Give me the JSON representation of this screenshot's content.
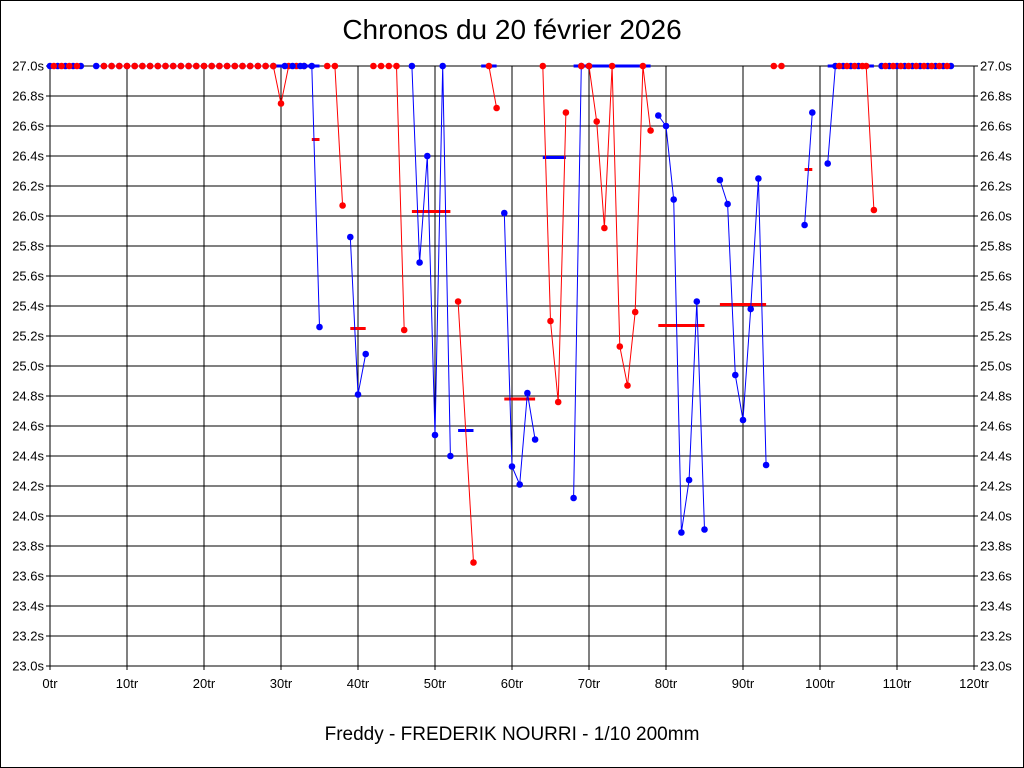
{
  "chart_data": {
    "type": "line",
    "title": "Chronos du 20 février 2026",
    "subtitle": "Freddy - FREDERIK NOURRI - 1/10 200mm",
    "xlabel": "",
    "ylabel": "",
    "xlim": [
      0,
      120
    ],
    "ylim": [
      23.0,
      27.0
    ],
    "grid": true,
    "legend": "none",
    "x_ticks": [
      "0tr",
      "10tr",
      "20tr",
      "30tr",
      "40tr",
      "50tr",
      "60tr",
      "70tr",
      "80tr",
      "90tr",
      "100tr",
      "110tr",
      "120tr"
    ],
    "y_ticks": [
      "23.0s",
      "23.2s",
      "23.4s",
      "23.6s",
      "23.8s",
      "24.0s",
      "24.2s",
      "24.4s",
      "24.6s",
      "24.8s",
      "25.0s",
      "25.2s",
      "25.4s",
      "25.6s",
      "25.8s",
      "26.0s",
      "26.2s",
      "26.4s",
      "26.6s",
      "26.8s",
      "27.0s"
    ],
    "colors": {
      "blue": "#0000ff",
      "red": "#ff0000",
      "grid": "#000000"
    },
    "series": [
      {
        "color": "#0000ff",
        "points": [
          [
            0,
            27.0
          ],
          [
            1,
            27.0
          ],
          [
            2,
            27.0
          ],
          [
            3,
            27.0
          ],
          [
            4,
            27.0
          ]
        ]
      },
      {
        "color": "#ff0000",
        "points": [
          [
            0.5,
            27.0
          ],
          [
            1.5,
            27.0
          ],
          [
            2.5,
            27.0
          ],
          [
            3.5,
            27.0
          ]
        ]
      },
      {
        "color": "#0000ff",
        "points": [
          [
            6,
            27.0
          ],
          [
            7,
            27.0
          ],
          [
            8,
            27.0
          ],
          [
            9,
            27.0
          ],
          [
            10,
            27.0
          ],
          [
            11,
            27.0
          ],
          [
            12,
            27.0
          ],
          [
            13,
            27.0
          ],
          [
            14,
            27.0
          ],
          [
            15,
            27.0
          ],
          [
            16,
            27.0
          ],
          [
            17,
            27.0
          ],
          [
            18,
            27.0
          ],
          [
            19,
            27.0
          ],
          [
            20,
            27.0
          ],
          [
            21,
            27.0
          ],
          [
            22,
            27.0
          ],
          [
            23,
            27.0
          ],
          [
            24,
            27.0
          ],
          [
            25,
            27.0
          ],
          [
            26,
            27.0
          ],
          [
            27,
            27.0
          ],
          [
            28,
            27.0
          ],
          [
            29,
            27.0
          ]
        ]
      },
      {
        "color": "#ff0000",
        "points": [
          [
            7,
            27.0
          ],
          [
            8,
            27.0
          ],
          [
            9,
            27.0
          ],
          [
            10,
            27.0
          ],
          [
            11,
            27.0
          ],
          [
            12,
            27.0
          ],
          [
            13,
            27.0
          ],
          [
            14,
            27.0
          ],
          [
            15,
            27.0
          ],
          [
            16,
            27.0
          ],
          [
            17,
            27.0
          ],
          [
            18,
            27.0
          ],
          [
            19,
            27.0
          ],
          [
            20,
            27.0
          ],
          [
            21,
            27.0
          ],
          [
            22,
            27.0
          ],
          [
            23,
            27.0
          ],
          [
            24,
            27.0
          ],
          [
            25,
            27.0
          ],
          [
            26,
            27.0
          ],
          [
            27,
            27.0
          ],
          [
            28,
            27.0
          ],
          [
            29,
            27.0
          ],
          [
            30,
            26.75
          ],
          [
            31,
            27.0
          ],
          [
            32,
            27.0
          ],
          [
            33,
            27.0
          ]
        ]
      },
      {
        "color": "#0000ff",
        "points": [
          [
            30.5,
            27.0
          ],
          [
            31.5,
            27.0
          ],
          [
            32.5,
            27.0
          ],
          [
            33,
            27.0
          ],
          [
            34,
            27.0
          ],
          [
            35,
            25.26
          ]
        ]
      },
      {
        "color": "#ff0000",
        "points": [
          [
            36,
            27.0
          ],
          [
            37,
            27.0
          ],
          [
            38,
            26.07
          ]
        ]
      },
      {
        "color": "#0000ff",
        "points": [
          [
            39,
            25.86
          ],
          [
            40,
            24.81
          ],
          [
            41,
            25.08
          ]
        ]
      },
      {
        "color": "#ff0000",
        "points": [
          [
            42,
            27.0
          ],
          [
            43,
            27.0
          ],
          [
            44,
            27.0
          ],
          [
            45,
            27.0
          ],
          [
            46,
            25.24
          ]
        ]
      },
      {
        "color": "#0000ff",
        "points": [
          [
            47,
            27.0
          ],
          [
            48,
            25.69
          ],
          [
            49,
            26.4
          ],
          [
            50,
            24.54
          ],
          [
            51,
            27.0
          ],
          [
            52,
            24.4
          ]
        ]
      },
      {
        "color": "#ff0000",
        "points": [
          [
            53,
            25.43
          ],
          [
            55,
            23.69
          ]
        ]
      },
      {
        "color": "#ff0000",
        "points": [
          [
            57,
            27.0
          ],
          [
            58,
            26.72
          ]
        ]
      },
      {
        "color": "#0000ff",
        "points": [
          [
            59,
            26.02
          ],
          [
            60,
            24.33
          ],
          [
            61,
            24.21
          ],
          [
            62,
            24.82
          ],
          [
            63,
            24.51
          ]
        ]
      },
      {
        "color": "#ff0000",
        "points": [
          [
            64,
            27.0
          ],
          [
            65,
            25.3
          ],
          [
            66,
            24.76
          ],
          [
            67,
            26.69
          ]
        ]
      },
      {
        "color": "#0000ff",
        "points": [
          [
            68,
            24.12
          ],
          [
            69,
            27.0
          ],
          [
            70,
            27.0
          ]
        ]
      },
      {
        "color": "#ff0000",
        "points": [
          [
            69,
            27.0
          ],
          [
            70,
            27.0
          ],
          [
            71,
            26.63
          ],
          [
            72,
            25.92
          ],
          [
            73,
            27.0
          ],
          [
            74,
            25.13
          ],
          [
            75,
            24.87
          ],
          [
            76,
            25.36
          ],
          [
            77,
            27.0
          ],
          [
            78,
            26.57
          ]
        ]
      },
      {
        "color": "#0000ff",
        "points": [
          [
            79,
            26.67
          ],
          [
            80,
            26.6
          ],
          [
            81,
            26.11
          ],
          [
            82,
            23.89
          ],
          [
            83,
            24.24
          ],
          [
            84,
            25.43
          ],
          [
            85,
            23.91
          ]
        ]
      },
      {
        "color": "#0000ff",
        "points": [
          [
            87,
            26.24
          ],
          [
            88,
            26.08
          ],
          [
            89,
            24.94
          ],
          [
            90,
            24.64
          ],
          [
            91,
            25.38
          ],
          [
            92,
            26.25
          ],
          [
            93,
            24.34
          ]
        ]
      },
      {
        "color": "#ff0000",
        "points": [
          [
            94,
            27.0
          ],
          [
            95,
            27.0
          ]
        ]
      },
      {
        "color": "#0000ff",
        "points": [
          [
            98,
            25.94
          ],
          [
            99,
            26.69
          ]
        ]
      },
      {
        "color": "#0000ff",
        "points": [
          [
            101,
            26.35
          ],
          [
            102,
            27.0
          ],
          [
            103,
            27.0
          ],
          [
            104,
            27.0
          ],
          [
            105,
            27.0
          ]
        ]
      },
      {
        "color": "#ff0000",
        "points": [
          [
            102.5,
            27.0
          ],
          [
            103.5,
            27.0
          ],
          [
            104.5,
            27.0
          ],
          [
            105.5,
            27.0
          ],
          [
            106,
            27.0
          ],
          [
            107,
            26.04
          ]
        ]
      },
      {
        "color": "#0000ff",
        "points": [
          [
            108,
            27.0
          ],
          [
            109,
            27.0
          ],
          [
            110,
            27.0
          ],
          [
            111,
            27.0
          ],
          [
            112,
            27.0
          ],
          [
            113,
            27.0
          ],
          [
            114,
            27.0
          ],
          [
            115,
            27.0
          ],
          [
            116,
            27.0
          ],
          [
            117,
            27.0
          ]
        ]
      },
      {
        "color": "#ff0000",
        "points": [
          [
            108.5,
            27.0
          ],
          [
            109.5,
            27.0
          ],
          [
            110.5,
            27.0
          ],
          [
            111.5,
            27.0
          ],
          [
            112.5,
            27.0
          ],
          [
            113.5,
            27.0
          ],
          [
            114.5,
            27.0
          ],
          [
            115.5,
            27.0
          ],
          [
            116.5,
            27.0
          ]
        ]
      }
    ],
    "averages": [
      {
        "color": "#0000ff",
        "x_start": 29,
        "x_end": 35,
        "value": 27.0
      },
      {
        "color": "#ff0000",
        "x_start": 34,
        "x_end": 35,
        "value": 26.51
      },
      {
        "color": "#ff0000",
        "x_start": 39,
        "x_end": 41,
        "value": 25.25
      },
      {
        "color": "#ff0000",
        "x_start": 47,
        "x_end": 52,
        "value": 26.03
      },
      {
        "color": "#0000ff",
        "x_start": 53,
        "x_end": 55,
        "value": 24.57
      },
      {
        "color": "#0000ff",
        "x_start": 56,
        "x_end": 58,
        "value": 27.0
      },
      {
        "color": "#ff0000",
        "x_start": 59,
        "x_end": 63,
        "value": 24.78
      },
      {
        "color": "#0000ff",
        "x_start": 64,
        "x_end": 67,
        "value": 26.39
      },
      {
        "color": "#0000ff",
        "x_start": 68,
        "x_end": 78,
        "value": 27.0
      },
      {
        "color": "#ff0000",
        "x_start": 79,
        "x_end": 85,
        "value": 25.27
      },
      {
        "color": "#ff0000",
        "x_start": 87,
        "x_end": 93,
        "value": 25.41
      },
      {
        "color": "#ff0000",
        "x_start": 98,
        "x_end": 99,
        "value": 26.31
      },
      {
        "color": "#0000ff",
        "x_start": 101,
        "x_end": 107,
        "value": 27.0
      }
    ]
  }
}
